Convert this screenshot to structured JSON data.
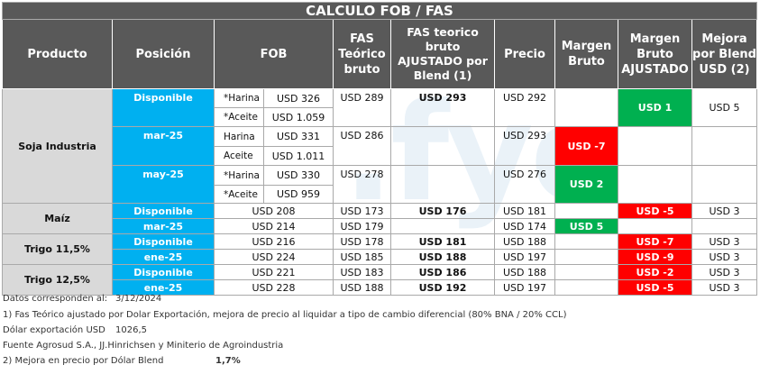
{
  "title": "CALCULO FOB / FAS",
  "headers": {
    "producto": "Producto",
    "posicion": "Posición",
    "fob": "FOB",
    "fas_teorico": "FAS Teórico bruto",
    "fas_ajustado": "FAS teorico bruto AJUSTADO por Blend (1)",
    "precio": "Precio",
    "margen_bruto": "Margen Bruto",
    "margen_ajustado": "Margen Bruto AJUSTADO",
    "mejora_blend": "Mejora por Blend USD (2)"
  },
  "soja": {
    "producto": "Soja Industria",
    "rows": [
      {
        "posicion": "Disponible",
        "harina_label": "*Harina",
        "harina_fob": "USD 326",
        "aceite_label": "*Aceite",
        "aceite_fob": "USD 1.059",
        "fas": "USD 289",
        "fas_aj": "USD 293",
        "precio": "USD 292",
        "margen": "",
        "margen_aj": "USD 1",
        "mejora": "USD 5"
      },
      {
        "posicion": "mar-25",
        "harina_label": "Harina",
        "harina_fob": "USD 331",
        "aceite_label": "Aceite",
        "aceite_fob": "USD 1.011",
        "fas": "USD 286",
        "fas_aj": "",
        "precio": "USD 293",
        "margen": "USD -7",
        "margen_aj": "",
        "mejora": ""
      },
      {
        "posicion": "may-25",
        "harina_label": "*Harina",
        "harina_fob": "USD 330",
        "aceite_label": "*Aceite",
        "aceite_fob": "USD 959",
        "fas": "USD 278",
        "fas_aj": "",
        "precio": "USD 276",
        "margen": "USD 2",
        "margen_aj": "",
        "mejora": ""
      }
    ]
  },
  "maiz": {
    "producto": "Maíz",
    "rows": [
      {
        "posicion": "Disponible",
        "fob": "USD 208",
        "fas": "USD 173",
        "fas_aj": "USD 176",
        "precio": "USD 181",
        "margen": "",
        "margen_aj": "USD -5",
        "mejora": "USD 3"
      },
      {
        "posicion": "mar-25",
        "fob": "USD 214",
        "fas": "USD 179",
        "fas_aj": "",
        "precio": "USD 174",
        "margen": "USD 5",
        "margen_aj": "",
        "mejora": ""
      }
    ]
  },
  "trigo115": {
    "producto": "Trigo 11,5%",
    "rows": [
      {
        "posicion": "Disponible",
        "fob": "USD 216",
        "fas": "USD 178",
        "fas_aj": "USD 181",
        "precio": "USD 188",
        "margen": "",
        "margen_aj": "USD -7",
        "mejora": "USD 3"
      },
      {
        "posicion": "ene-25",
        "fob": "USD 224",
        "fas": "USD 185",
        "fas_aj": "USD 188",
        "precio": "USD 197",
        "margen": "",
        "margen_aj": "USD -9",
        "mejora": "USD 3"
      }
    ]
  },
  "trigo125": {
    "producto": "Trigo 12,5%",
    "rows": [
      {
        "posicion": "Disponible",
        "fob": "USD 221",
        "fas": "USD 183",
        "fas_aj": "USD 186",
        "precio": "USD 188",
        "margen": "",
        "margen_aj": "USD -2",
        "mejora": "USD 3"
      },
      {
        "posicion": "ene-25",
        "fob": "USD 228",
        "fas": "USD 188",
        "fas_aj": "USD 192",
        "precio": "USD 197",
        "margen": "",
        "margen_aj": "USD -5",
        "mejora": "USD 3"
      }
    ]
  },
  "notes": {
    "datos_label": "Datos corresponden al:",
    "datos_fecha": "3/12/2024",
    "nota1": "1) Fas Teórico ajustado por Dolar Exportación, mejora de precio al liquidar a tipo de cambio diferencial (80% BNA / 20% CCL)",
    "dolar_label": "Dólar exportación USD",
    "dolar_valor": "1026,5",
    "fuente": "Fuente Agrosud S.A., JJ.Hinrichsen y Miniterio de Agroindustria",
    "nota2_label": "2) Mejora en precio por Dólar Blend",
    "nota2_valor": "1,7%"
  },
  "watermark": "fyo",
  "colors": {
    "header_bg": "#595959",
    "position_bg": "#00b0f0",
    "product_bg": "#d9d9d9",
    "positive": "#00b050",
    "negative": "#ff0000"
  }
}
